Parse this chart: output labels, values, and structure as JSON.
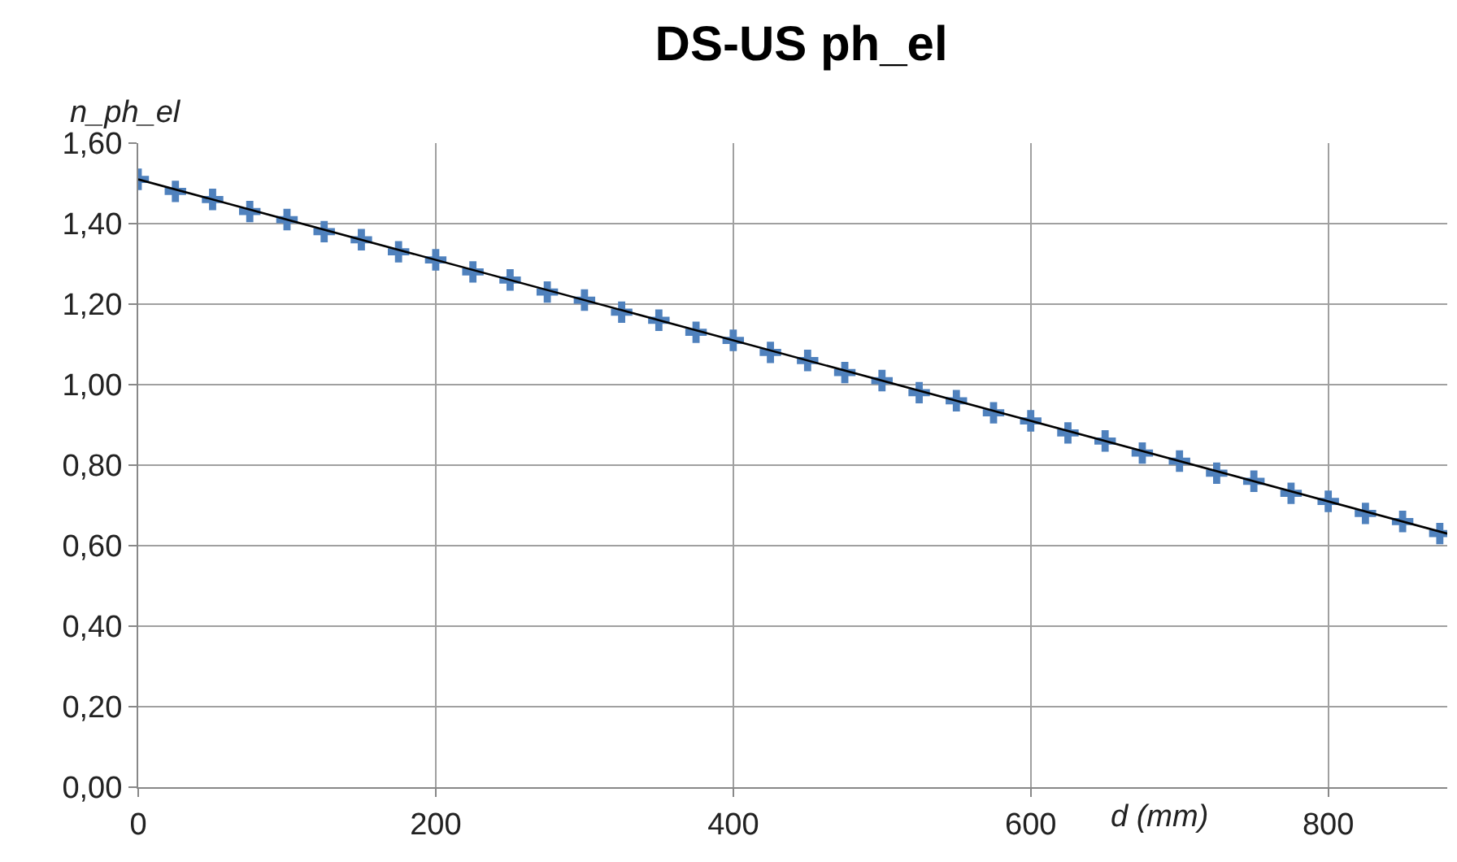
{
  "chart_data": {
    "type": "scatter",
    "title": "DS-US ph_el",
    "xlabel": "d (mm)",
    "ylabel": "n_ph_el",
    "series": [
      {
        "color": "#4f81bd",
        "marker": "cross",
        "x": [
          0,
          25,
          50,
          75,
          100,
          125,
          150,
          175,
          200,
          225,
          250,
          275,
          300,
          325,
          350,
          375,
          400,
          425,
          450,
          475,
          500,
          525,
          550,
          575,
          600,
          625,
          650,
          675,
          700,
          725,
          750,
          775,
          800,
          825,
          850,
          875
        ],
        "values": [
          1.51,
          1.48,
          1.46,
          1.43,
          1.41,
          1.38,
          1.36,
          1.33,
          1.31,
          1.28,
          1.26,
          1.23,
          1.21,
          1.18,
          1.16,
          1.13,
          1.11,
          1.08,
          1.06,
          1.03,
          1.01,
          0.98,
          0.96,
          0.93,
          0.91,
          0.88,
          0.86,
          0.83,
          0.81,
          0.78,
          0.76,
          0.73,
          0.71,
          0.68,
          0.66,
          0.63
        ]
      },
      {
        "type": "line",
        "color": "#000000",
        "x": [
          0,
          880
        ],
        "values": [
          1.51,
          0.63
        ]
      }
    ],
    "xlim": [
      0,
      880
    ],
    "xticks": [
      0,
      200,
      400,
      600,
      800
    ],
    "ylim": [
      0,
      1.6
    ],
    "yticks": [
      {
        "value": 0,
        "label": "0,00"
      },
      {
        "value": 0.2,
        "label": "0,20"
      },
      {
        "value": 0.4,
        "label": "0,40"
      },
      {
        "value": 0.6,
        "label": "0,60"
      },
      {
        "value": 0.8,
        "label": "0,80"
      },
      {
        "value": 1.0,
        "label": "1,00"
      },
      {
        "value": 1.2,
        "label": "1,20"
      },
      {
        "value": 1.4,
        "label": "1,40"
      },
      {
        "value": 1.6,
        "label": "1,60"
      }
    ],
    "grid": true
  }
}
